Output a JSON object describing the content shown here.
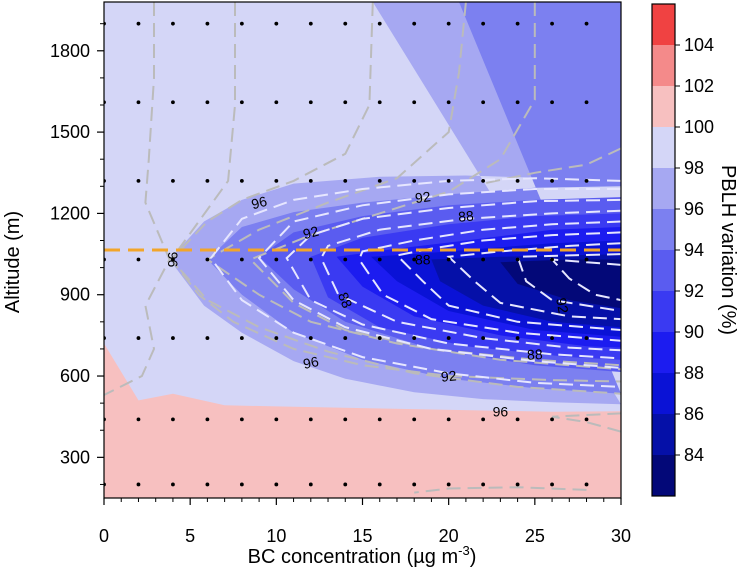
{
  "chart_data": {
    "type": "heatmap",
    "xlabel": {
      "main": "BC concentration (µg m",
      "sup": "-3",
      "end": ")"
    },
    "ylabel": "Altitude (m)",
    "colorbar_label": "PBLH variation (%)",
    "xlim": [
      0,
      30
    ],
    "ylim": [
      150,
      1980
    ],
    "xticks": [
      "0",
      "5",
      "10",
      "15",
      "20",
      "25",
      "30"
    ],
    "yticks": [
      "300",
      "600",
      "900",
      "1200",
      "1500",
      "1800"
    ],
    "colorbar_levels": [
      84,
      86,
      88,
      90,
      92,
      94,
      96,
      98,
      100,
      102,
      104
    ],
    "colorbar_range": [
      82,
      106
    ],
    "colorbar_tick_labels": [
      "84",
      "86",
      "88",
      "90",
      "92",
      "94",
      "96",
      "98",
      "100",
      "102",
      "104"
    ],
    "band_colors": [
      "#030878",
      "#0510a8",
      "#0a12d6",
      "#1c1cf0",
      "#3a3af2",
      "#5a5cf0",
      "#7c80f0",
      "#a6a8f2",
      "#d4d6f7",
      "#f7c0c0",
      "#f48a8a",
      "#f04242"
    ],
    "contour_labels": [
      "96",
      "96",
      "92",
      "92",
      "92",
      "88",
      "88",
      "88",
      "88",
      "92",
      "96",
      "96"
    ],
    "reference_line": {
      "altitude": 1065,
      "color": "#f2a52a"
    },
    "dot_grid": {
      "x": [
        0,
        2,
        4,
        6,
        8,
        10,
        12,
        14,
        16,
        18,
        20,
        22,
        24,
        26,
        28
      ],
      "y": [
        200,
        440,
        740,
        1030,
        1320,
        1610,
        1900
      ]
    }
  }
}
